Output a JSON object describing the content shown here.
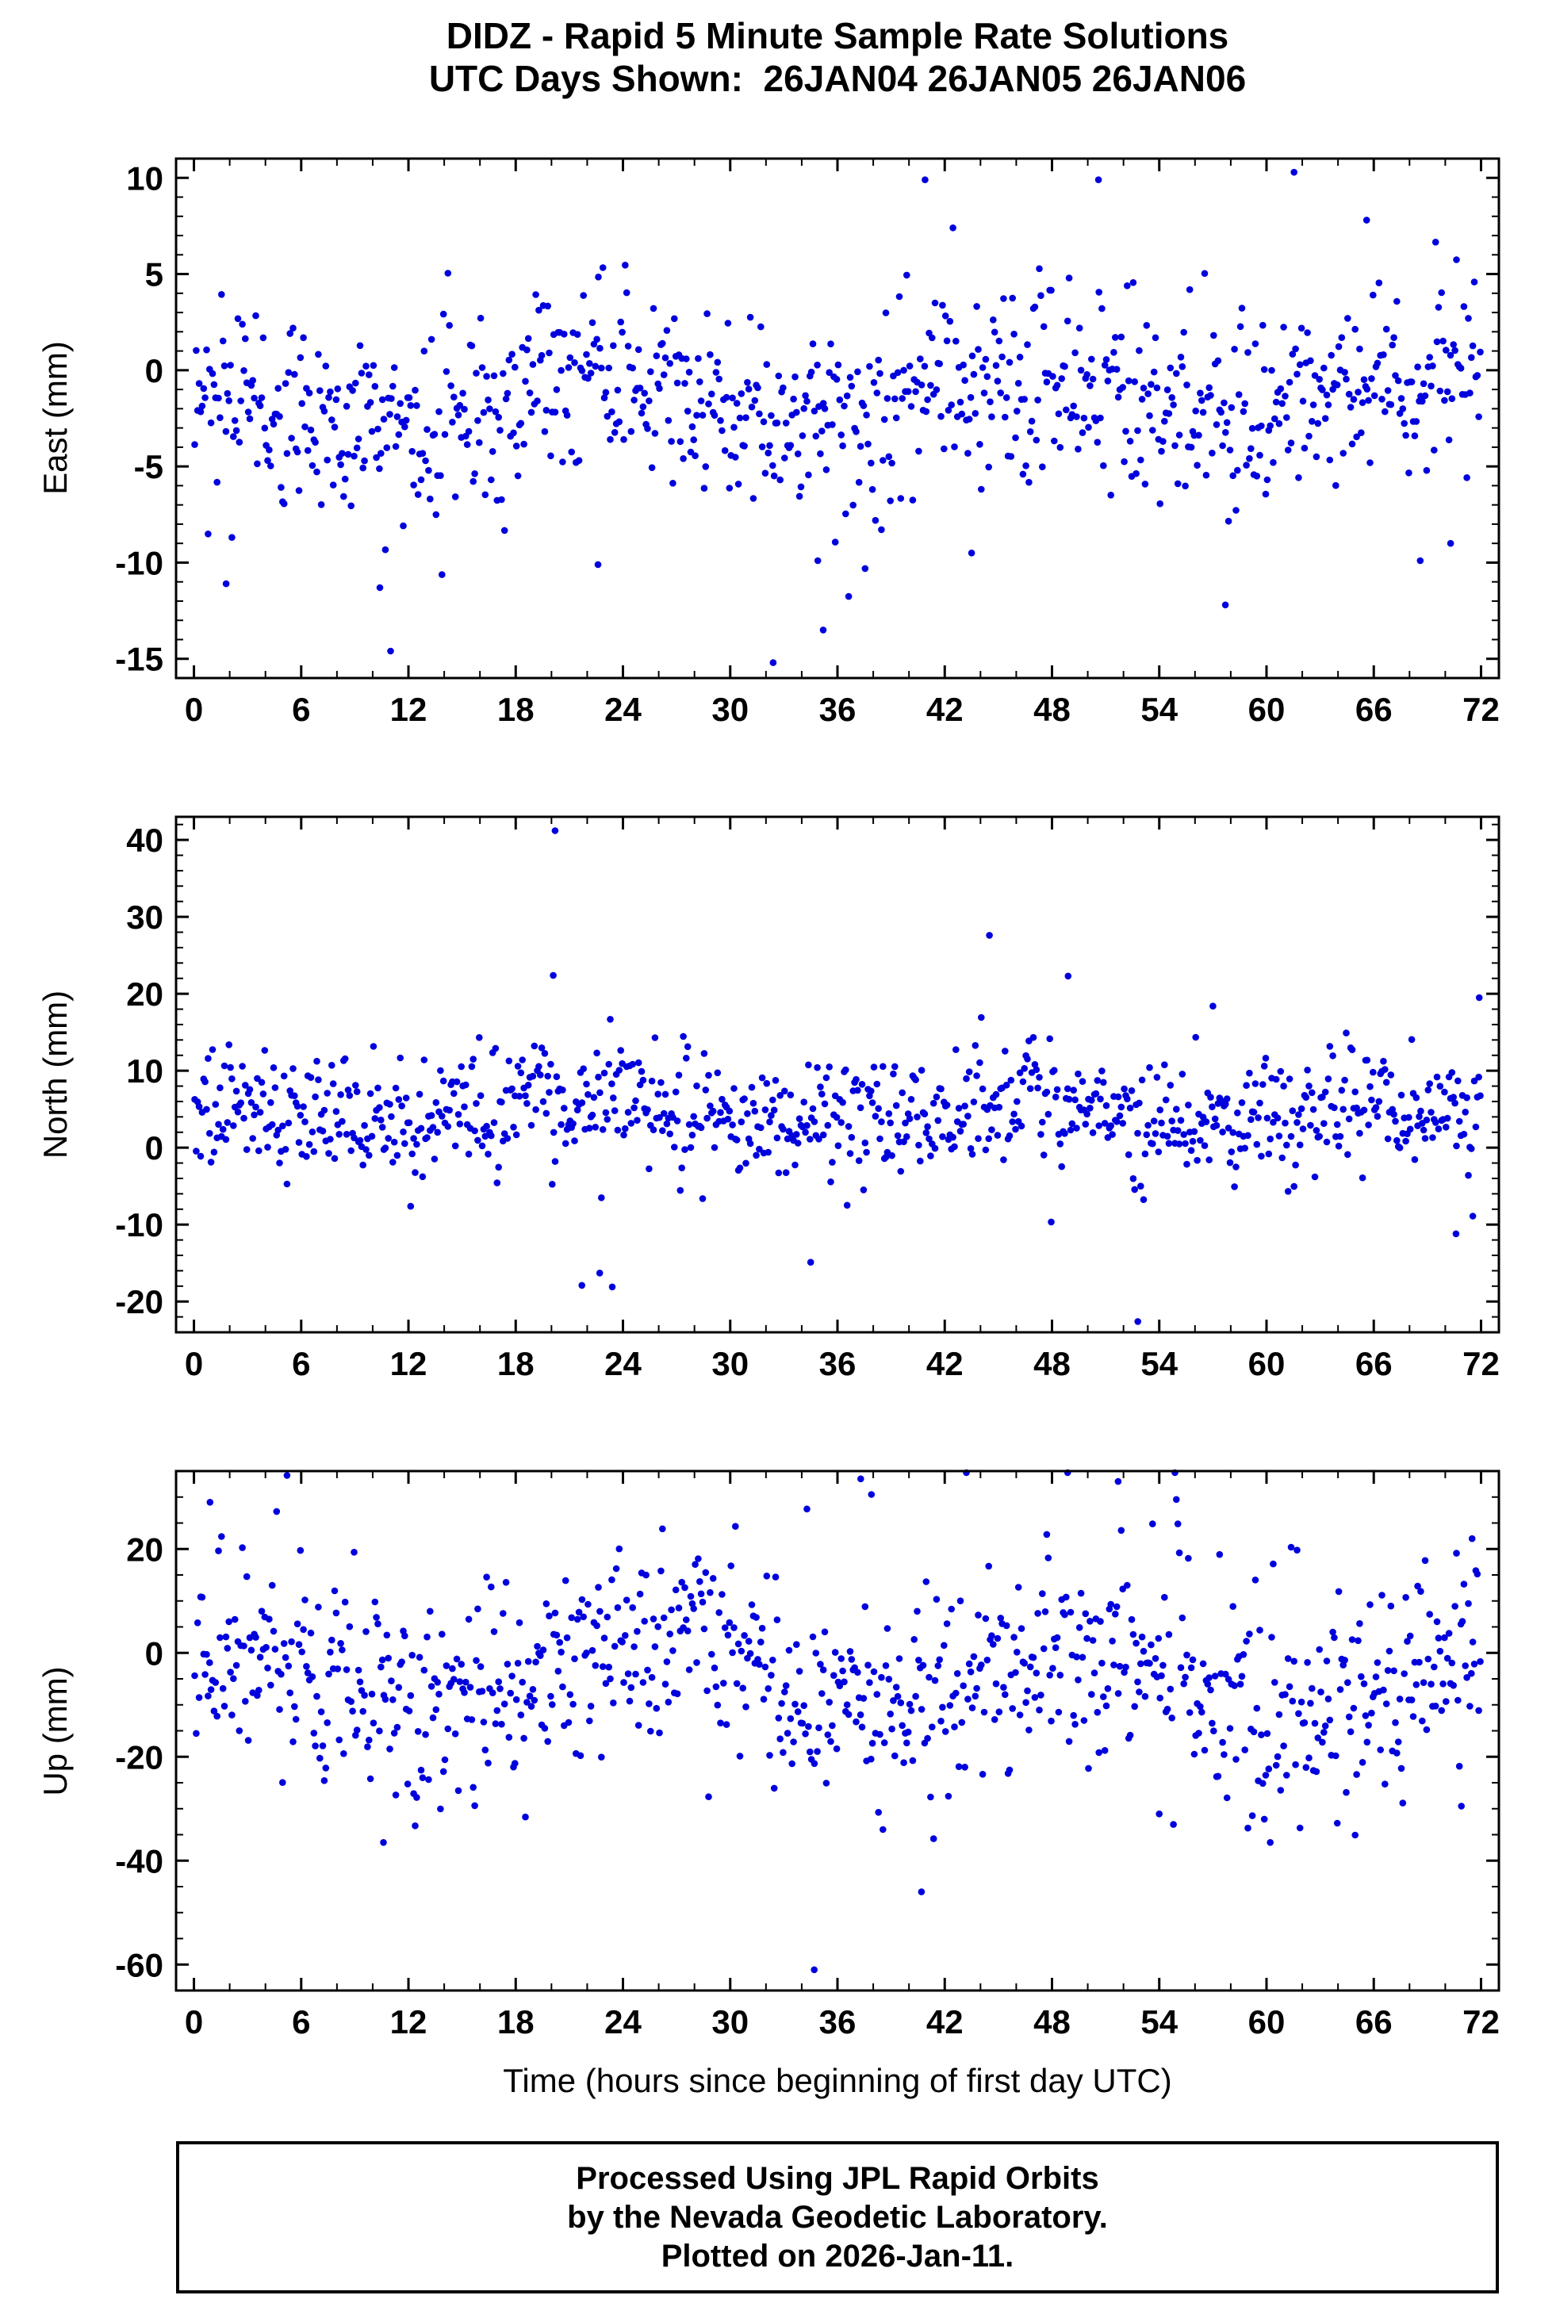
{
  "title": {
    "line1": "DIDZ - Rapid 5 Minute Sample Rate Solutions",
    "line2": "UTC Days Shown:  26JAN04 26JAN05 26JAN06"
  },
  "footer": {
    "line1": "Processed Using JPL Rapid Orbits",
    "line2": "by the Nevada Geodetic Laboratory.",
    "line3": "Plotted on 2026-Jan-11."
  },
  "chart_data": {
    "type": "scatter",
    "title": "DIDZ - Rapid 5 Minute Sample Rate Solutions",
    "subtitle": "UTC Days Shown:  26JAN04 26JAN05 26JAN06",
    "xlabel": "Time (hours since beginning of first day UTC)",
    "grid": false,
    "legend": false,
    "marker_color": "#0000dd",
    "marker_radius": 4.3,
    "sample_interval_minutes": 5,
    "x_range_hours": [
      0,
      72
    ],
    "x_lim": [
      -1,
      73
    ],
    "x_ticks": [
      0,
      6,
      12,
      18,
      24,
      30,
      36,
      42,
      48,
      54,
      60,
      66,
      72
    ],
    "x_major_step": 6,
    "x_minor_step": 2,
    "series": [
      {
        "name": "East (mm)",
        "n_points": 864,
        "seed": 42,
        "y_lim": [
          -16,
          11
        ],
        "y_ticks": [
          -15,
          -10,
          -5,
          0,
          5,
          10
        ],
        "y_minor_step": 1,
        "mean": -1.6,
        "sigma": 2.5,
        "daily_amplitude": 1.1,
        "daily_phase_hours": 16,
        "tail_prob": 0.03,
        "tail_scale": 1.8,
        "outliers": [
          [
            1.8,
            -11.1
          ],
          [
            10.4,
            -11.3
          ],
          [
            11.0,
            -14.6
          ],
          [
            22.6,
            -10.1
          ],
          [
            32.4,
            -15.2
          ],
          [
            34.9,
            -9.9
          ],
          [
            35.2,
            -13.5
          ],
          [
            40.9,
            9.9
          ],
          [
            43.5,
            -9.5
          ],
          [
            50.6,
            9.9
          ],
          [
            57.7,
            -12.2
          ],
          [
            65.6,
            7.8
          ],
          [
            68.6,
            -9.9
          ],
          [
            70.3,
            -9.0
          ]
        ]
      },
      {
        "name": "North (mm)",
        "n_points": 864,
        "seed": 7,
        "y_lim": [
          -24,
          43
        ],
        "y_ticks": [
          -20,
          -10,
          0,
          10,
          20,
          30,
          40
        ],
        "y_minor_step": 2,
        "mean": 4.5,
        "sigma": 4.0,
        "daily_amplitude": 1.4,
        "daily_phase_hours": 16,
        "tail_prob": 0.03,
        "tail_scale": 1.8,
        "outliers": [
          [
            20.1,
            22.4
          ],
          [
            20.2,
            41.2
          ],
          [
            21.7,
            -17.9
          ],
          [
            22.7,
            -16.3
          ],
          [
            23.4,
            -18.1
          ],
          [
            34.5,
            -14.9
          ],
          [
            44.5,
            27.6
          ],
          [
            48.9,
            22.3
          ],
          [
            52.8,
            -22.6
          ],
          [
            57.0,
            18.4
          ],
          [
            70.6,
            -11.2
          ],
          [
            71.9,
            19.5
          ]
        ]
      },
      {
        "name": "Up (mm)",
        "n_points": 864,
        "seed": 2024,
        "y_lim": [
          -65,
          35
        ],
        "y_ticks": [
          -60,
          -40,
          -20,
          0,
          20
        ],
        "y_minor_step": 5,
        "mean": -4.5,
        "sigma": 10.5,
        "daily_amplitude": 5.5,
        "daily_phase_hours": 20,
        "tail_prob": 0.025,
        "tail_scale": 1.7,
        "outliers": [
          [
            0.9,
            29.0
          ],
          [
            10.6,
            -36.5
          ],
          [
            34.7,
            -61.0
          ],
          [
            37.3,
            33.5
          ],
          [
            37.9,
            30.5
          ],
          [
            40.7,
            -46.0
          ],
          [
            51.7,
            33.0
          ],
          [
            54.0,
            -31.0
          ],
          [
            70.9,
            -29.5
          ],
          [
            71.5,
            22.0
          ]
        ]
      }
    ]
  }
}
